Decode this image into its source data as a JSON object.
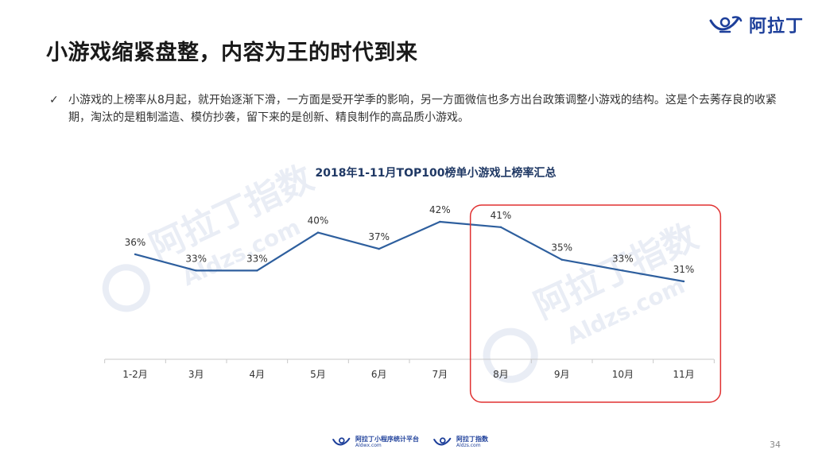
{
  "header": {
    "title": "小游戏缩紧盘整，内容为王的时代到来",
    "logo_text": "阿拉丁"
  },
  "bullet": {
    "text": "小游戏的上榜率从8月起，就开始逐渐下滑，一方面是受开学季的影响，另一方面微信也多方出台政策调整小游戏的结构。这是个去莠存良的收紧期，淘汰的是粗制滥造、模仿抄袭，留下来的是创新、精良制作的高品质小游戏。"
  },
  "watermarks": {
    "brand": "阿拉丁指数",
    "domain": "Aldzs.com"
  },
  "chart_data": {
    "type": "line",
    "title": "2018年1-11月TOP100榜单小游戏上榜率汇总",
    "categories": [
      "1-2月",
      "3月",
      "4月",
      "5月",
      "6月",
      "7月",
      "8月",
      "9月",
      "10月",
      "11月"
    ],
    "values": [
      36,
      33,
      33,
      40,
      37,
      42,
      41,
      35,
      33,
      31
    ],
    "value_labels": [
      "36%",
      "33%",
      "33%",
      "40%",
      "37%",
      "42%",
      "41%",
      "35%",
      "33%",
      "31%"
    ],
    "unit": "%",
    "line_color": "#2e5f9e",
    "highlight": {
      "from": "8月",
      "to": "11月",
      "color": "#e03030"
    },
    "grid": false,
    "legend": "none"
  },
  "footer": {
    "logo1_name": "阿拉丁小程序统计平台",
    "logo1_domain": "Aldwx.com",
    "logo2_name": "阿拉丁指数",
    "logo2_domain": "Aldzs.com",
    "page_number": "34"
  },
  "colors": {
    "brand": "#1d3f9a",
    "title_text": "#1f3864"
  }
}
